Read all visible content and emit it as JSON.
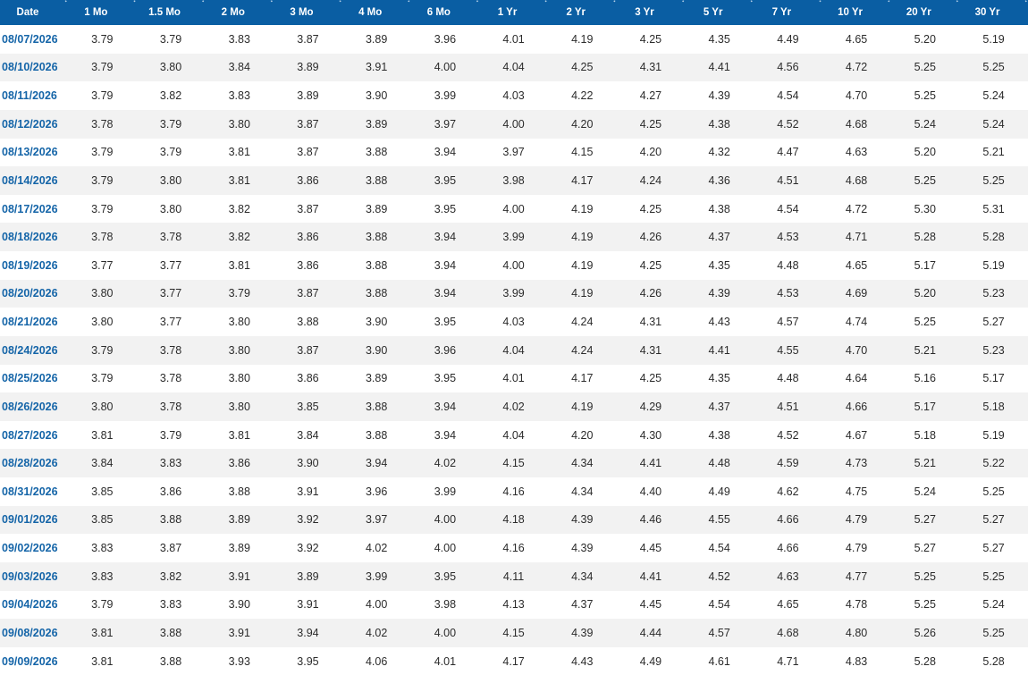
{
  "columns": [
    "Date",
    "1 Mo",
    "1.5 Mo",
    "2 Mo",
    "3 Mo",
    "4 Mo",
    "6 Mo",
    "1 Yr",
    "2 Yr",
    "3 Yr",
    "5 Yr",
    "7 Yr",
    "10 Yr",
    "20 Yr",
    "30 Yr"
  ],
  "sort_icon_glyph": "↕",
  "rows": [
    [
      "08/07/2026",
      "3.79",
      "3.79",
      "3.83",
      "3.87",
      "3.89",
      "3.96",
      "4.01",
      "4.19",
      "4.25",
      "4.35",
      "4.49",
      "4.65",
      "5.20",
      "5.19"
    ],
    [
      "08/10/2026",
      "3.79",
      "3.80",
      "3.84",
      "3.89",
      "3.91",
      "4.00",
      "4.04",
      "4.25",
      "4.31",
      "4.41",
      "4.56",
      "4.72",
      "5.25",
      "5.25"
    ],
    [
      "08/11/2026",
      "3.79",
      "3.82",
      "3.83",
      "3.89",
      "3.90",
      "3.99",
      "4.03",
      "4.22",
      "4.27",
      "4.39",
      "4.54",
      "4.70",
      "5.25",
      "5.24"
    ],
    [
      "08/12/2026",
      "3.78",
      "3.79",
      "3.80",
      "3.87",
      "3.89",
      "3.97",
      "4.00",
      "4.20",
      "4.25",
      "4.38",
      "4.52",
      "4.68",
      "5.24",
      "5.24"
    ],
    [
      "08/13/2026",
      "3.79",
      "3.79",
      "3.81",
      "3.87",
      "3.88",
      "3.94",
      "3.97",
      "4.15",
      "4.20",
      "4.32",
      "4.47",
      "4.63",
      "5.20",
      "5.21"
    ],
    [
      "08/14/2026",
      "3.79",
      "3.80",
      "3.81",
      "3.86",
      "3.88",
      "3.95",
      "3.98",
      "4.17",
      "4.24",
      "4.36",
      "4.51",
      "4.68",
      "5.25",
      "5.25"
    ],
    [
      "08/17/2026",
      "3.79",
      "3.80",
      "3.82",
      "3.87",
      "3.89",
      "3.95",
      "4.00",
      "4.19",
      "4.25",
      "4.38",
      "4.54",
      "4.72",
      "5.30",
      "5.31"
    ],
    [
      "08/18/2026",
      "3.78",
      "3.78",
      "3.82",
      "3.86",
      "3.88",
      "3.94",
      "3.99",
      "4.19",
      "4.26",
      "4.37",
      "4.53",
      "4.71",
      "5.28",
      "5.28"
    ],
    [
      "08/19/2026",
      "3.77",
      "3.77",
      "3.81",
      "3.86",
      "3.88",
      "3.94",
      "4.00",
      "4.19",
      "4.25",
      "4.35",
      "4.48",
      "4.65",
      "5.17",
      "5.19"
    ],
    [
      "08/20/2026",
      "3.80",
      "3.77",
      "3.79",
      "3.87",
      "3.88",
      "3.94",
      "3.99",
      "4.19",
      "4.26",
      "4.39",
      "4.53",
      "4.69",
      "5.20",
      "5.23"
    ],
    [
      "08/21/2026",
      "3.80",
      "3.77",
      "3.80",
      "3.88",
      "3.90",
      "3.95",
      "4.03",
      "4.24",
      "4.31",
      "4.43",
      "4.57",
      "4.74",
      "5.25",
      "5.27"
    ],
    [
      "08/24/2026",
      "3.79",
      "3.78",
      "3.80",
      "3.87",
      "3.90",
      "3.96",
      "4.04",
      "4.24",
      "4.31",
      "4.41",
      "4.55",
      "4.70",
      "5.21",
      "5.23"
    ],
    [
      "08/25/2026",
      "3.79",
      "3.78",
      "3.80",
      "3.86",
      "3.89",
      "3.95",
      "4.01",
      "4.17",
      "4.25",
      "4.35",
      "4.48",
      "4.64",
      "5.16",
      "5.17"
    ],
    [
      "08/26/2026",
      "3.80",
      "3.78",
      "3.80",
      "3.85",
      "3.88",
      "3.94",
      "4.02",
      "4.19",
      "4.29",
      "4.37",
      "4.51",
      "4.66",
      "5.17",
      "5.18"
    ],
    [
      "08/27/2026",
      "3.81",
      "3.79",
      "3.81",
      "3.84",
      "3.88",
      "3.94",
      "4.04",
      "4.20",
      "4.30",
      "4.38",
      "4.52",
      "4.67",
      "5.18",
      "5.19"
    ],
    [
      "08/28/2026",
      "3.84",
      "3.83",
      "3.86",
      "3.90",
      "3.94",
      "4.02",
      "4.15",
      "4.34",
      "4.41",
      "4.48",
      "4.59",
      "4.73",
      "5.21",
      "5.22"
    ],
    [
      "08/31/2026",
      "3.85",
      "3.86",
      "3.88",
      "3.91",
      "3.96",
      "3.99",
      "4.16",
      "4.34",
      "4.40",
      "4.49",
      "4.62",
      "4.75",
      "5.24",
      "5.25"
    ],
    [
      "09/01/2026",
      "3.85",
      "3.88",
      "3.89",
      "3.92",
      "3.97",
      "4.00",
      "4.18",
      "4.39",
      "4.46",
      "4.55",
      "4.66",
      "4.79",
      "5.27",
      "5.27"
    ],
    [
      "09/02/2026",
      "3.83",
      "3.87",
      "3.89",
      "3.92",
      "4.02",
      "4.00",
      "4.16",
      "4.39",
      "4.45",
      "4.54",
      "4.66",
      "4.79",
      "5.27",
      "5.27"
    ],
    [
      "09/03/2026",
      "3.83",
      "3.82",
      "3.91",
      "3.89",
      "3.99",
      "3.95",
      "4.11",
      "4.34",
      "4.41",
      "4.52",
      "4.63",
      "4.77",
      "5.25",
      "5.25"
    ],
    [
      "09/04/2026",
      "3.79",
      "3.83",
      "3.90",
      "3.91",
      "4.00",
      "3.98",
      "4.13",
      "4.37",
      "4.45",
      "4.54",
      "4.65",
      "4.78",
      "5.25",
      "5.24"
    ],
    [
      "09/08/2026",
      "3.81",
      "3.88",
      "3.91",
      "3.94",
      "4.02",
      "4.00",
      "4.15",
      "4.39",
      "4.44",
      "4.57",
      "4.68",
      "4.80",
      "5.26",
      "5.25"
    ],
    [
      "09/09/2026",
      "3.81",
      "3.88",
      "3.93",
      "3.95",
      "4.06",
      "4.01",
      "4.17",
      "4.43",
      "4.49",
      "4.61",
      "4.71",
      "4.83",
      "5.28",
      "5.28"
    ]
  ]
}
